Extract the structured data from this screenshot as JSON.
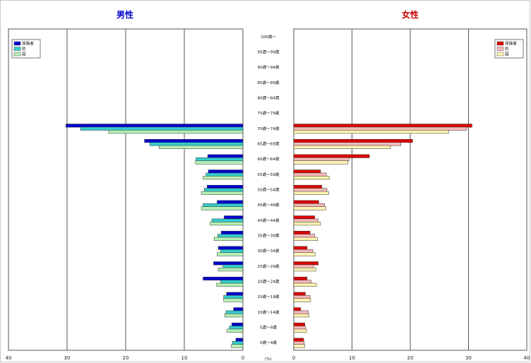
{
  "chart_data": {
    "type": "bar",
    "orientation": "horizontal",
    "layout": "population-pyramid",
    "unit_label": "(%)",
    "age_groups": [
      "0歳～4歳",
      "5歳～9歳",
      "10歳～14歳",
      "15歳～19歳",
      "20歳～24歳",
      "25歳～29歳",
      "30歳～34歳",
      "35歳～39歳",
      "40歳～44歳",
      "45歳～49歳",
      "50歳～54歳",
      "55歳～59歳",
      "60歳～64歳",
      "65歳～69歳",
      "70歳～74歳",
      "75歳～79歳",
      "80歳～84歳",
      "85歳～89歳",
      "90歳～94歳",
      "95歳～99歳",
      "100歳～"
    ],
    "x_ticks": [
      40,
      30,
      20,
      10,
      0
    ],
    "xlim": [
      0,
      40
    ],
    "panels": [
      {
        "side": "left",
        "title": "男性",
        "title_color": "#0000cc",
        "legend_position": "top-left",
        "series": [
          {
            "name": "保険者",
            "color": "#0000cc",
            "values": [
              1.2,
              1.9,
              1.6,
              2.8,
              6.8,
              5.0,
              4.2,
              3.7,
              3.2,
              4.4,
              6.1,
              5.9,
              6.0,
              16.8,
              30.2,
              0,
              0,
              0,
              0,
              0,
              0
            ]
          },
          {
            "name": "県",
            "color": "#33cccc",
            "values": [
              1.8,
              2.3,
              2.9,
              3.3,
              3.8,
              3.4,
              3.8,
              4.3,
              5.3,
              6.8,
              6.6,
              6.3,
              8.0,
              15.9,
              27.7,
              0,
              0,
              0,
              0,
              0,
              0
            ]
          },
          {
            "name": "国",
            "color": "#b3f0b3",
            "values": [
              2.0,
              2.7,
              3.1,
              3.3,
              4.5,
              4.2,
              4.4,
              4.9,
              5.6,
              7.1,
              7.1,
              6.8,
              8.1,
              14.3,
              22.9,
              0,
              0,
              0,
              0,
              0,
              0
            ]
          }
        ]
      },
      {
        "side": "right",
        "title": "女性",
        "title_color": "#cc0000",
        "legend_position": "top-right",
        "series": [
          {
            "name": "保険者",
            "color": "#dd0000",
            "values": [
              1.7,
              1.9,
              1.2,
              2.0,
              2.3,
              4.2,
              2.3,
              2.8,
              3.6,
              4.3,
              4.8,
              4.6,
              13.0,
              20.4,
              30.6,
              0,
              0,
              0,
              0,
              0,
              0
            ]
          },
          {
            "name": "県",
            "color": "#f4b8b8",
            "values": [
              1.8,
              2.0,
              2.5,
              2.8,
              3.0,
              3.4,
              3.3,
              3.6,
              4.2,
              5.3,
              5.7,
              5.6,
              9.5,
              18.4,
              29.7,
              0,
              0,
              0,
              0,
              0,
              0
            ]
          },
          {
            "name": "国",
            "color": "#fff2b0",
            "values": [
              1.9,
              2.2,
              2.6,
              2.9,
              3.9,
              3.8,
              3.7,
              4.1,
              4.6,
              5.5,
              6.0,
              6.1,
              9.3,
              16.6,
              26.6,
              0,
              0,
              0,
              0,
              0,
              0
            ]
          }
        ]
      }
    ]
  }
}
